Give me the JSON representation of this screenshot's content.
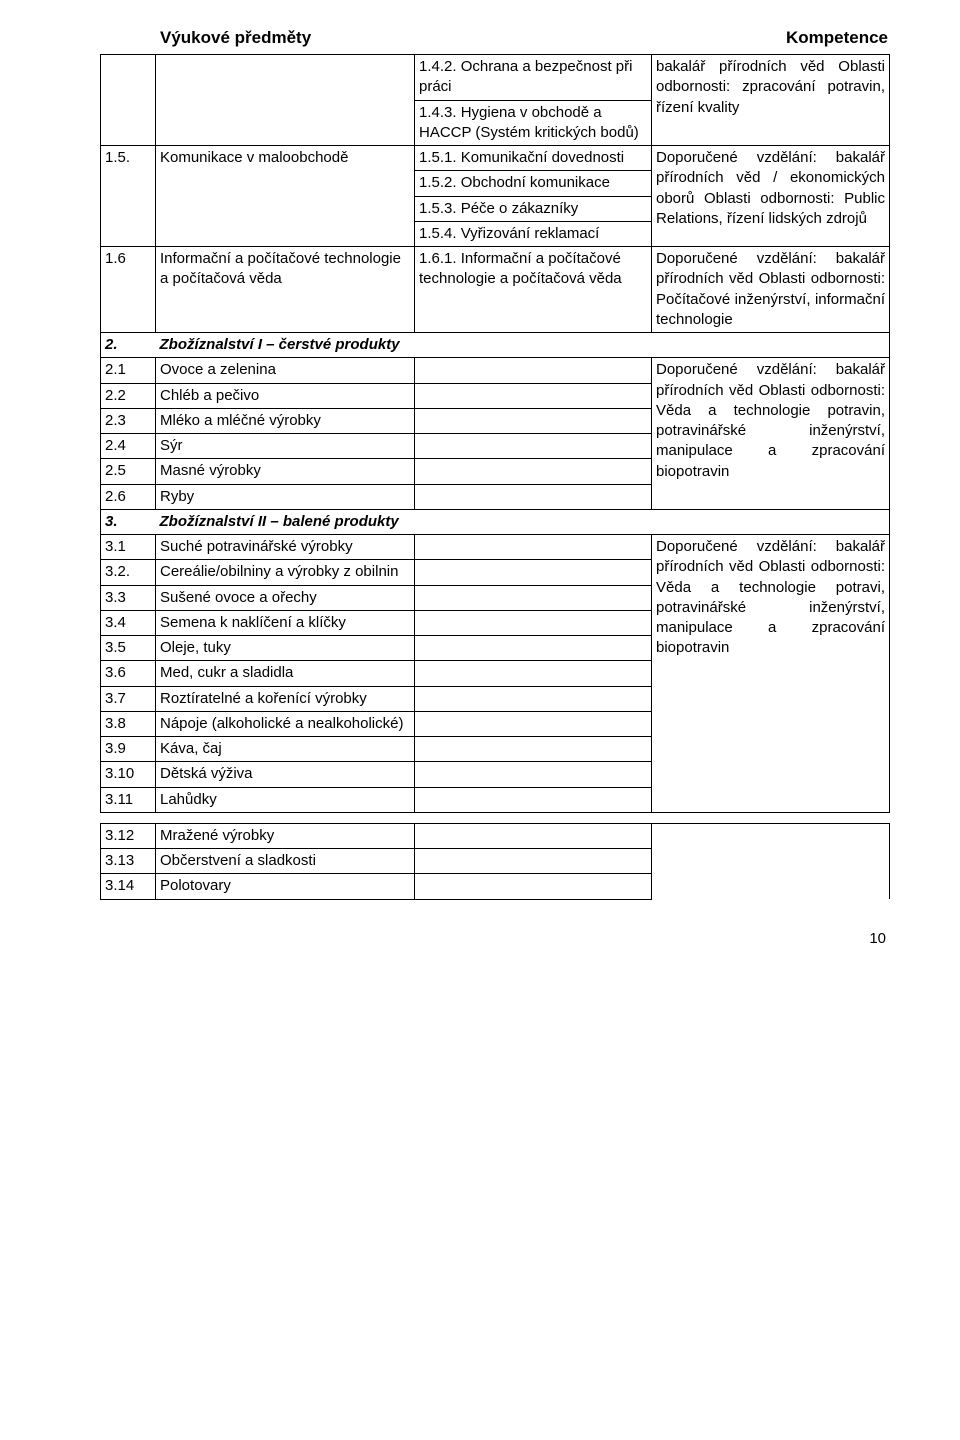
{
  "header": {
    "left": "Výukové předměty",
    "right": "Kompetence"
  },
  "r142": "1.4.2. Ochrana a bezpečnost při práci",
  "r143": "1.4.3. Hygiena v obchodě a HACCP (Systém kritických bodů)",
  "comp14": "bakalář přírodních věd Oblasti odbornosti: zpracování potravin, řízení kvality",
  "r15num": "1.5.",
  "r15name": "Komunikace v maloobchodě",
  "r151": "1.5.1. Komunikační dovednosti",
  "r152": "1.5.2. Obchodní komunikace",
  "r153": "1.5.3. Péče o zákazníky",
  "r154": "1.5.4. Vyřizování reklamací",
  "comp15": "Doporučené vzdělání: bakalář přírodních věd / ekonomických oborů Oblasti odbornosti: Public Relations, řízení lidských zdrojů",
  "r16num": "1.6",
  "r16name": "Informační a počítačové technologie a počítačová věda",
  "r161": "1.6.1. Informační a počítačové technologie a počítačová věda",
  "comp16": "Doporučené vzdělání: bakalář přírodních věd Oblasti odbornosti: Počítačové inženýrství, informační technologie",
  "s2num": "2.",
  "s2title": "Zbožíznalství I – čerstvé produkty",
  "r21n": "2.1",
  "r21": "Ovoce a zelenina",
  "r22n": "2.2",
  "r22": "Chléb a pečivo",
  "r23n": "2.3",
  "r23": "Mléko a mléčné výrobky",
  "r24n": "2.4",
  "r24": "Sýr",
  "r25n": "2.5",
  "r25": "Masné výrobky",
  "r26n": "2.6",
  "r26": "Ryby",
  "comp2": "Doporučené vzdělání: bakalář přírodních věd Oblasti odbornosti: Věda a technologie potravin, potravinářské inženýrství, manipulace a zpracování biopotravin",
  "s3num": "3.",
  "s3title": "Zbožíznalství II – balené produkty",
  "r31n": "3.1",
  "r31": "Suché potravinářské výrobky",
  "r32n": "3.2.",
  "r32": "Cereálie/obilniny a výrobky z obilnin",
  "r33n": "3.3",
  "r33": "Sušené ovoce a ořechy",
  "r34n": "3.4",
  "r34": "Semena k naklíčení a klíčky",
  "r35n": "3.5",
  "r35": "Oleje, tuky",
  "r36n": "3.6",
  "r36": "Med, cukr a sladidla",
  "r37n": "3.7",
  "r37": "Roztíratelné a kořenící výrobky",
  "r38n": "3.8",
  "r38": "Nápoje (alkoholické a nealkoholické)",
  "r39n": "3.9",
  "r39": "Káva, čaj",
  "r310n": "3.10",
  "r310": "Dětská výživa",
  "r311n": "3.11",
  "r311": "Lahůdky",
  "r312n": "3.12",
  "r312": "Mražené výrobky",
  "r313n": "3.13",
  "r313": "Občerstvení a sladkosti",
  "r314n": "3.14",
  "r314": "Polotovary",
  "comp3": "Doporučené vzdělání: bakalář přírodních věd Oblasti odbornosti: Věda a technologie potravi, potravinářské inženýrství, manipulace a zpracování biopotravin",
  "pagenum": "10"
}
